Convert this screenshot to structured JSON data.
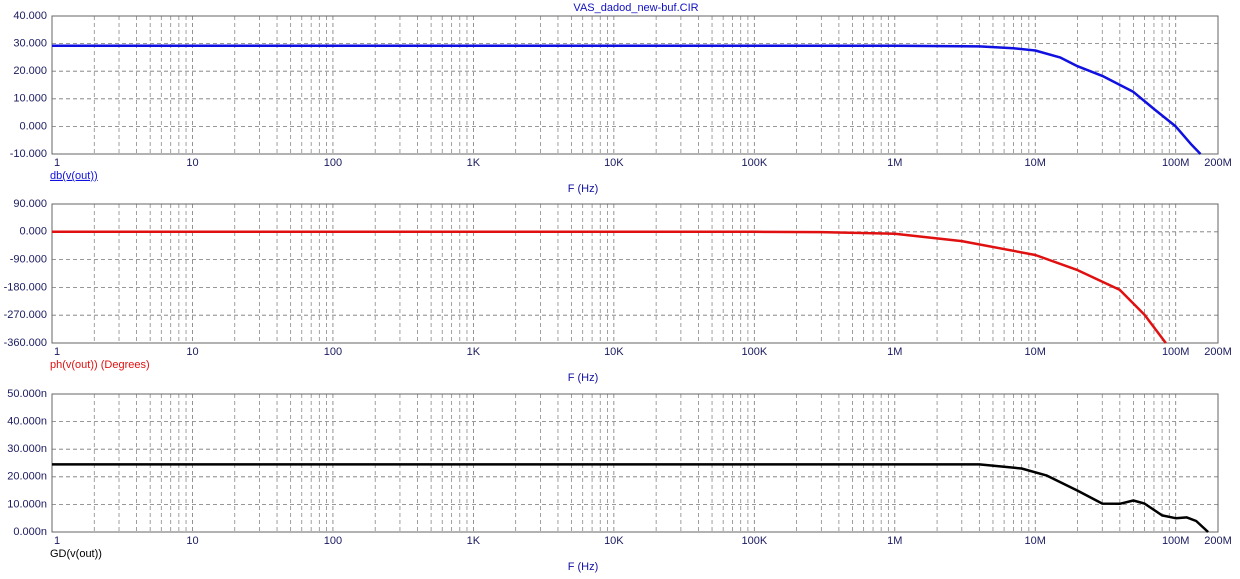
{
  "chart_data": [
    {
      "type": "line",
      "title": "VAS_dadod_new-buf.CIR",
      "xlabel": "F (Hz)",
      "log_x": true,
      "grid": true,
      "xlim": [
        1,
        200000000
      ],
      "xticks": [
        1,
        10,
        100,
        {
          "value": 1000,
          "label": "1K"
        },
        {
          "value": 10000,
          "label": "10K"
        },
        {
          "value": 100000,
          "label": "100K"
        },
        {
          "value": 1000000,
          "label": "1M"
        },
        {
          "value": 10000000,
          "label": "10M"
        },
        {
          "value": 100000000,
          "label": "100M"
        },
        {
          "value": 200000000,
          "label": "200M"
        }
      ],
      "ylim": [
        -10,
        40
      ],
      "yticks": [
        {
          "value": -10,
          "label": "-10.000"
        },
        {
          "value": 0,
          "label": "0.000"
        },
        {
          "value": 10,
          "label": "10.000"
        },
        {
          "value": 20,
          "label": "20.000"
        },
        {
          "value": 30,
          "label": "30.000"
        },
        {
          "value": 40,
          "label": "40.000"
        }
      ],
      "x": [
        1,
        10,
        100,
        1000,
        10000,
        100000,
        1000000,
        4000000,
        7000000,
        10000000,
        15000000,
        20000000,
        30000000,
        50000000,
        70000000,
        100000000,
        130000000,
        150000000
      ],
      "series": [
        {
          "name": "db(v(out))",
          "color": "#1010e0",
          "values": [
            29.2,
            29.2,
            29.2,
            29.2,
            29.2,
            29.2,
            29.2,
            29.0,
            28.3,
            27.5,
            25.0,
            21.8,
            18.3,
            12.5,
            6.3,
            0,
            -6.7,
            -10
          ]
        }
      ]
    },
    {
      "type": "line",
      "xlabel": "F (Hz)",
      "log_x": true,
      "grid": true,
      "xlim": [
        1,
        200000000
      ],
      "xticks": [
        1,
        10,
        100,
        {
          "value": 1000,
          "label": "1K"
        },
        {
          "value": 10000,
          "label": "10K"
        },
        {
          "value": 100000,
          "label": "100K"
        },
        {
          "value": 1000000,
          "label": "1M"
        },
        {
          "value": 10000000,
          "label": "10M"
        },
        {
          "value": 100000000,
          "label": "100M"
        },
        {
          "value": 200000000,
          "label": "200M"
        }
      ],
      "ylim": [
        -360,
        90
      ],
      "yticks": [
        {
          "value": -360,
          "label": "-360.000"
        },
        {
          "value": -270,
          "label": "-270.000"
        },
        {
          "value": -180,
          "label": "-180.000"
        },
        {
          "value": -90,
          "label": "-90.000"
        },
        {
          "value": 0,
          "label": "0.000"
        },
        {
          "value": 90,
          "label": "90.000"
        }
      ],
      "x": [
        1,
        10,
        100,
        1000,
        10000,
        100000,
        300000,
        1000000,
        3000000,
        10000000,
        20000000,
        40000000,
        60000000,
        85000000
      ],
      "series": [
        {
          "name": "ph(v(out)) (Degrees)",
          "color": "#e01010",
          "values": [
            0,
            0,
            0,
            0,
            0,
            0,
            -1,
            -6,
            -30,
            -75,
            -124,
            -188,
            -269,
            -360
          ]
        }
      ]
    },
    {
      "type": "line",
      "xlabel": "F (Hz)",
      "log_x": true,
      "grid": true,
      "xlim": [
        1,
        200000000
      ],
      "xticks": [
        1,
        10,
        100,
        {
          "value": 1000,
          "label": "1K"
        },
        {
          "value": 10000,
          "label": "10K"
        },
        {
          "value": 100000,
          "label": "100K"
        },
        {
          "value": 1000000,
          "label": "1M"
        },
        {
          "value": 10000000,
          "label": "10M"
        },
        {
          "value": 100000000,
          "label": "100M"
        },
        {
          "value": 200000000,
          "label": "200M"
        }
      ],
      "ylim": [
        0,
        50
      ],
      "yticks": [
        {
          "value": 0,
          "label": "0.000n"
        },
        {
          "value": 10,
          "label": "10.000n"
        },
        {
          "value": 20,
          "label": "20.000n"
        },
        {
          "value": 30,
          "label": "30.000n"
        },
        {
          "value": 40,
          "label": "40.000n"
        },
        {
          "value": 50,
          "label": "50.000n"
        }
      ],
      "x": [
        1,
        10,
        100,
        1000,
        10000,
        100000,
        1000000,
        4000000,
        8000000,
        12000000,
        20000000,
        30000000,
        40000000,
        50000000,
        60000000,
        80000000,
        100000000,
        120000000,
        140000000,
        170000000
      ],
      "series": [
        {
          "name": "GD(v(out))",
          "color": "#000000",
          "values": [
            24.5,
            24.5,
            24.5,
            24.5,
            24.5,
            24.5,
            24.5,
            24.5,
            23,
            20.5,
            15,
            10.3,
            10.2,
            11.4,
            10.3,
            6,
            5,
            5.3,
            4,
            0
          ]
        }
      ]
    }
  ]
}
